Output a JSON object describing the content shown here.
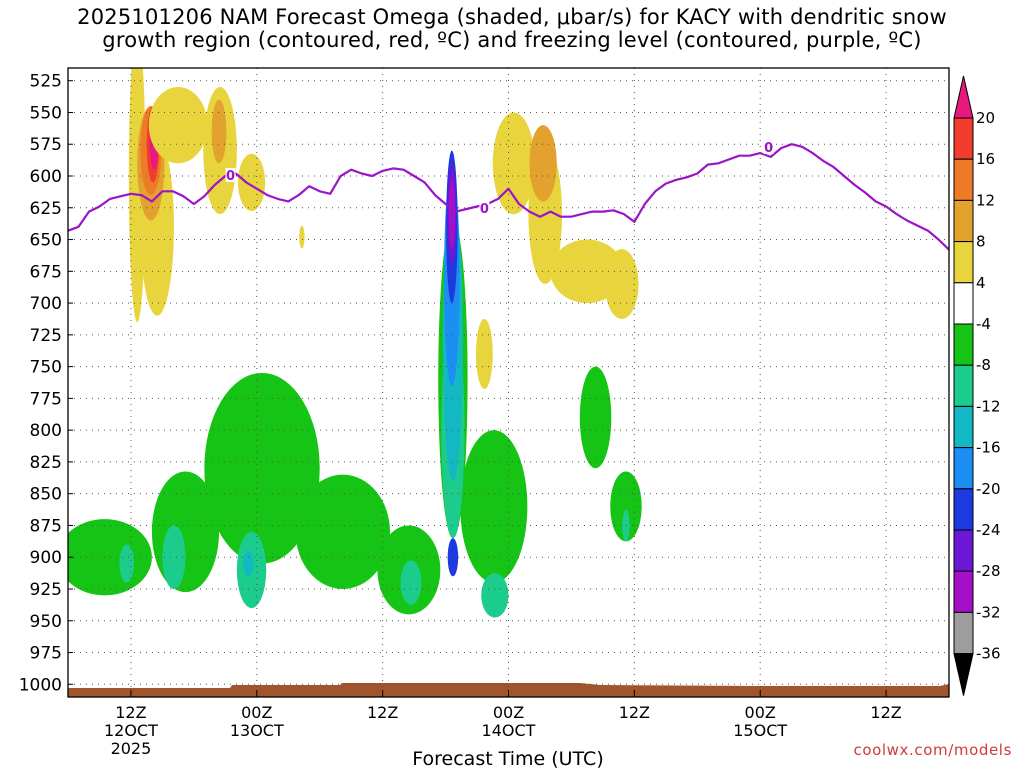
{
  "title": {
    "line1": "2025101206 NAM Forecast Omega (shaded, μbar/s) for KACY with dendritic snow",
    "line2": "growth region (contoured, red, ºC) and freezing level (contoured, purple, ºC)"
  },
  "credit": "coolwx.com/models",
  "chart_data": {
    "type": "time-pressure cross-section (filled contours)",
    "xlabel": "Forecast Time (UTC)",
    "x_unit": "hours after 2025-10-12 00Z",
    "xlim": [
      6,
      90
    ],
    "x_ticks": [
      {
        "hour": 12,
        "label": "12Z",
        "sub": [
          "12OCT",
          "2025"
        ]
      },
      {
        "hour": 24,
        "label": "00Z",
        "sub": [
          "13OCT"
        ]
      },
      {
        "hour": 36,
        "label": "12Z",
        "sub": []
      },
      {
        "hour": 48,
        "label": "00Z",
        "sub": [
          "14OCT"
        ]
      },
      {
        "hour": 60,
        "label": "12Z",
        "sub": []
      },
      {
        "hour": 72,
        "label": "00Z",
        "sub": [
          "15OCT"
        ]
      },
      {
        "hour": 84,
        "label": "12Z",
        "sub": []
      }
    ],
    "ylabel_unit": "hPa",
    "ylim": [
      515,
      1010
    ],
    "y_ticks": [
      525,
      550,
      575,
      600,
      625,
      650,
      675,
      700,
      725,
      750,
      775,
      800,
      825,
      850,
      875,
      900,
      925,
      950,
      975,
      1000
    ],
    "grid": true,
    "colorbar": {
      "labels": [
        20,
        16,
        12,
        8,
        4,
        -4,
        -8,
        -12,
        -16,
        -20,
        -24,
        -28,
        -32,
        -36
      ],
      "bands": [
        {
          "min": 16,
          "max": 20,
          "color": "#f23c2e"
        },
        {
          "min": 12,
          "max": 16,
          "color": "#ee7b28"
        },
        {
          "min": 8,
          "max": 12,
          "color": "#e2a22d"
        },
        {
          "min": 4,
          "max": 8,
          "color": "#e8d43c"
        },
        {
          "min": -4,
          "max": 4,
          "color": "#ffffff"
        },
        {
          "min": -8,
          "max": -4,
          "color": "#16c416"
        },
        {
          "min": -12,
          "max": -8,
          "color": "#1ccc8c"
        },
        {
          "min": -16,
          "max": -12,
          "color": "#12b9c4"
        },
        {
          "min": -20,
          "max": -16,
          "color": "#1b8ff2"
        },
        {
          "min": -24,
          "max": -20,
          "color": "#1c3ae0"
        },
        {
          "min": -28,
          "max": -24,
          "color": "#6a17d6"
        },
        {
          "min": -32,
          "max": -28,
          "color": "#a40fc9"
        },
        {
          "min": -36,
          "max": -32,
          "color": "#9d9d9d"
        }
      ],
      "top_arrow_color": "#e8197c",
      "bottom_arrow_color": "#000000"
    },
    "omega_regions": [
      {
        "color": "#e8d43c",
        "h": 14.5,
        "p": 640,
        "dh": 1.6,
        "dp": 140
      },
      {
        "color": "#e8d43c",
        "h": 12.6,
        "p": 600,
        "dh": 0.8,
        "dp": 230
      },
      {
        "color": "#e2a22d",
        "h": 13.9,
        "p": 590,
        "dh": 1.3,
        "dp": 90
      },
      {
        "color": "#ee7b28",
        "h": 13.9,
        "p": 580,
        "dh": 1.0,
        "dp": 70
      },
      {
        "color": "#f23c2e",
        "h": 14.1,
        "p": 575,
        "dh": 0.6,
        "dp": 60
      },
      {
        "color": "#e8197c",
        "h": 14.2,
        "p": 570,
        "dh": 0.45,
        "dp": 50
      },
      {
        "color": "#e8d43c",
        "h": 16.5,
        "p": 560,
        "dh": 2.8,
        "dp": 60
      },
      {
        "color": "#e8d43c",
        "h": 20.5,
        "p": 580,
        "dh": 1.6,
        "dp": 100
      },
      {
        "color": "#e2a22d",
        "h": 20.4,
        "p": 565,
        "dh": 0.7,
        "dp": 50
      },
      {
        "color": "#e8d43c",
        "h": 23.5,
        "p": 605,
        "dh": 1.3,
        "dp": 45
      },
      {
        "color": "#e8d43c",
        "h": 28.3,
        "p": 648,
        "dh": 0.25,
        "dp": 18
      },
      {
        "color": "#e8d43c",
        "h": 48.5,
        "p": 590,
        "dh": 2.0,
        "dp": 80
      },
      {
        "color": "#e8d43c",
        "h": 51.5,
        "p": 630,
        "dh": 1.6,
        "dp": 110
      },
      {
        "color": "#e2a22d",
        "h": 51.3,
        "p": 590,
        "dh": 1.3,
        "dp": 60
      },
      {
        "color": "#e8d43c",
        "h": 55.5,
        "p": 675,
        "dh": 3.5,
        "dp": 50
      },
      {
        "color": "#e8d43c",
        "h": 58.8,
        "p": 685,
        "dh": 1.6,
        "dp": 55
      },
      {
        "color": "#e8d43c",
        "h": 45.7,
        "p": 740,
        "dh": 0.8,
        "dp": 55
      },
      {
        "color": "#16c416",
        "h": 9.5,
        "p": 900,
        "dh": 4.5,
        "dp": 60
      },
      {
        "color": "#16c416",
        "h": 17.2,
        "p": 880,
        "dh": 3.2,
        "dp": 95
      },
      {
        "color": "#16c416",
        "h": 24.5,
        "p": 830,
        "dh": 5.5,
        "dp": 150
      },
      {
        "color": "#16c416",
        "h": 32.2,
        "p": 880,
        "dh": 4.5,
        "dp": 90
      },
      {
        "color": "#16c416",
        "h": 38.5,
        "p": 910,
        "dh": 3.0,
        "dp": 70
      },
      {
        "color": "#16c416",
        "h": 46.6,
        "p": 860,
        "dh": 3.2,
        "dp": 120
      },
      {
        "color": "#16c416",
        "h": 56.3,
        "p": 790,
        "dh": 1.5,
        "dp": 80
      },
      {
        "color": "#16c416",
        "h": 59.2,
        "p": 860,
        "dh": 1.5,
        "dp": 55
      },
      {
        "color": "#1ccc8c",
        "h": 11.6,
        "p": 905,
        "dh": 0.7,
        "dp": 30
      },
      {
        "color": "#1ccc8c",
        "h": 16.1,
        "p": 900,
        "dh": 1.1,
        "dp": 50
      },
      {
        "color": "#1ccc8c",
        "h": 23.5,
        "p": 910,
        "dh": 1.4,
        "dp": 60
      },
      {
        "color": "#12b9c4",
        "h": 23.2,
        "p": 905,
        "dh": 0.5,
        "dp": 20
      },
      {
        "color": "#1ccc8c",
        "h": 38.7,
        "p": 920,
        "dh": 1.0,
        "dp": 35
      },
      {
        "color": "#1ccc8c",
        "h": 46.7,
        "p": 930,
        "dh": 1.3,
        "dp": 35
      },
      {
        "color": "#1ccc8c",
        "h": 59.2,
        "p": 875,
        "dh": 0.35,
        "dp": 25
      },
      {
        "color": "#16c416",
        "h": 42.7,
        "p": 760,
        "dh": 1.4,
        "dp": 250
      },
      {
        "color": "#1ccc8c",
        "h": 42.7,
        "p": 800,
        "dh": 1.1,
        "dp": 170
      },
      {
        "color": "#12b9c4",
        "h": 42.7,
        "p": 730,
        "dh": 0.95,
        "dp": 220
      },
      {
        "color": "#1b8ff2",
        "h": 42.6,
        "p": 680,
        "dh": 0.75,
        "dp": 170
      },
      {
        "color": "#1c3ae0",
        "h": 42.6,
        "p": 640,
        "dh": 0.55,
        "dp": 120
      },
      {
        "color": "#6a17d6",
        "h": 42.6,
        "p": 630,
        "dh": 0.42,
        "dp": 80
      },
      {
        "color": "#a40fc9",
        "h": 42.6,
        "p": 630,
        "dh": 0.3,
        "dp": 55
      },
      {
        "color": "#1c3ae0",
        "h": 42.7,
        "p": 900,
        "dh": 0.5,
        "dp": 30
      }
    ],
    "freezing_level": {
      "label": "0",
      "x": [
        6.0,
        7.0,
        8.0,
        9.0,
        10.0,
        11.0,
        12.0,
        13.0,
        14.0,
        15.0,
        16.0,
        17.0,
        18.0,
        19.0,
        20.0,
        21.0,
        22.0,
        23.0,
        24.0,
        25.0,
        26.0,
        27.0,
        28.0,
        29.0,
        30.0,
        31.0,
        32.0,
        33.0,
        34.0,
        35.0,
        36.0,
        37.0,
        38.0,
        39.0,
        40.0,
        41.0,
        42.0,
        43.0,
        44.0,
        45.0,
        46.0,
        47.0,
        48.0,
        49.0,
        50.0,
        51.0,
        52.0,
        53.0,
        54.0,
        55.0,
        56.0,
        57.0,
        58.0,
        59.0,
        60.0,
        61.0,
        62.0,
        63.0,
        64.0,
        65.0,
        66.0,
        67.0,
        68.0,
        69.0,
        70.0,
        71.0,
        72.0,
        73.0,
        74.0,
        75.0,
        76.0,
        77.0,
        78.0,
        79.0,
        80.0,
        81.0,
        82.0,
        83.0,
        84.0,
        85.0,
        86.0,
        87.0,
        88.0,
        89.0,
        90.0
      ],
      "p": [
        643,
        640,
        628,
        624,
        618,
        616,
        614,
        615,
        620,
        612,
        612,
        616,
        622,
        616,
        607,
        600,
        598,
        605,
        610,
        615,
        618,
        620,
        615,
        608,
        612,
        614,
        600,
        595,
        598,
        600,
        596,
        594,
        595,
        600,
        605,
        615,
        622,
        628,
        626,
        624,
        622,
        618,
        610,
        622,
        628,
        632,
        628,
        632,
        632,
        630,
        628,
        628,
        627,
        630,
        636,
        622,
        612,
        606,
        603,
        601,
        598,
        591,
        590,
        587,
        584,
        584,
        582,
        585,
        578,
        575,
        577,
        582,
        588,
        593,
        600,
        607,
        613,
        620,
        624,
        630,
        635,
        639,
        643,
        650,
        658
      ]
    }
  }
}
